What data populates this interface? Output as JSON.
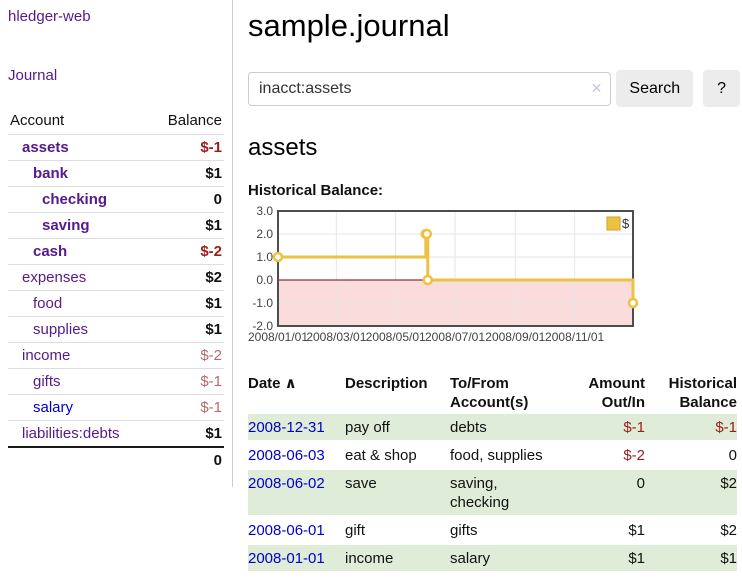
{
  "app": {
    "name": "hledger-web"
  },
  "colors": {
    "link_purple": "#551a8b",
    "link_blue": "#0000cc",
    "negative_strong": "#9b1c1c",
    "negative_soft": "#b36a6c",
    "row_stripe_green": "#deecd8",
    "button_gray": "#ececec"
  },
  "sidebar": {
    "journal_link": "Journal",
    "table": {
      "headers": {
        "account": "Account",
        "balance": "Balance"
      },
      "rows": [
        {
          "name": "assets",
          "balance": "$-1",
          "level": 0,
          "bold": true,
          "balance_bold": true,
          "link_color": "purple"
        },
        {
          "name": "bank",
          "balance": "$1",
          "level": 1,
          "bold": true,
          "balance_bold": true,
          "link_color": "purple"
        },
        {
          "name": "checking",
          "balance": "0",
          "level": 2,
          "bold": true,
          "balance_bold": true,
          "link_color": "purple"
        },
        {
          "name": "saving",
          "balance": "$1",
          "level": 2,
          "bold": true,
          "balance_bold": true,
          "link_color": "purple"
        },
        {
          "name": "cash",
          "balance": "$-2",
          "level": 1,
          "bold": true,
          "balance_bold": true,
          "link_color": "purple"
        },
        {
          "name": "expenses",
          "balance": "$2",
          "level": 0,
          "bold": false,
          "balance_bold": true,
          "link_color": "purple"
        },
        {
          "name": "food",
          "balance": "$1",
          "level": 1,
          "bold": false,
          "balance_bold": true,
          "link_color": "purple"
        },
        {
          "name": "supplies",
          "balance": "$1",
          "level": 1,
          "bold": false,
          "balance_bold": true,
          "link_color": "purple"
        },
        {
          "name": "income",
          "balance": "$-2",
          "level": 0,
          "bold": false,
          "balance_bold": false,
          "link_color": "purple"
        },
        {
          "name": "gifts",
          "balance": "$-1",
          "level": 1,
          "bold": false,
          "balance_bold": false,
          "link_color": "purple"
        },
        {
          "name": "salary",
          "balance": "$-1",
          "level": 1,
          "bold": false,
          "balance_bold": false,
          "link_color": "blue"
        },
        {
          "name": "liabilities:debts",
          "balance": "$1",
          "level": 0,
          "bold": false,
          "balance_bold": true,
          "link_color": "purple"
        }
      ],
      "total": "0"
    }
  },
  "main": {
    "title": "sample.journal",
    "search": {
      "value": "inacct:assets",
      "clear_icon": "✕",
      "button": "Search",
      "help_button": "?"
    },
    "account_heading": "assets"
  },
  "chart_data": {
    "type": "line",
    "step": true,
    "title": "Historical Balance:",
    "xlabel": "",
    "ylabel": "",
    "xlim": [
      "2008-01-01",
      "2008-12-31"
    ],
    "ylim": [
      -2,
      3
    ],
    "x_ticks": [
      "2008/01/01",
      "2008/03/01",
      "2008/05/01",
      "2008/07/01",
      "2008/09/01",
      "2008/11/01"
    ],
    "y_ticks": [
      "3.0",
      "2.0",
      "1.0",
      "0.0",
      "-1.0",
      "-2.0"
    ],
    "grid": true,
    "legend_position": "top-right",
    "grid_color": "#e6e6e6",
    "border_color": "#4d4d4d",
    "zero_line_color": "#800000",
    "negative_region_color": "#fadcdc",
    "series": [
      {
        "name": "$",
        "color": "#edc240",
        "points": [
          [
            "2008-01-01",
            1
          ],
          [
            "2008-06-01",
            2
          ],
          [
            "2008-06-02",
            2
          ],
          [
            "2008-06-03",
            0
          ],
          [
            "2008-12-31",
            -1
          ]
        ]
      }
    ]
  },
  "register": {
    "headers": [
      {
        "label": "Date",
        "sort_indicator": "∧",
        "align": "left",
        "sortable": true
      },
      {
        "label": "Description",
        "align": "left",
        "sortable": false
      },
      {
        "label": "To/From Account(s)",
        "align": "left",
        "sortable": false
      },
      {
        "label": "Amount Out/In",
        "align": "right",
        "sortable": false
      },
      {
        "label": "Historical Balance",
        "align": "right",
        "sortable": false
      }
    ],
    "rows": [
      {
        "date": "2008-12-31",
        "description": "pay off",
        "accounts": "debts",
        "amount": "$-1",
        "balance": "$-1"
      },
      {
        "date": "2008-06-03",
        "description": "eat & shop",
        "accounts": "food, supplies",
        "amount": "$-2",
        "balance": "0"
      },
      {
        "date": "2008-06-02",
        "description": "save",
        "accounts": "saving, checking",
        "amount": "0",
        "balance": "$2"
      },
      {
        "date": "2008-06-01",
        "description": "gift",
        "accounts": "gifts",
        "amount": "$1",
        "balance": "$2"
      },
      {
        "date": "2008-01-01",
        "description": "income",
        "accounts": "salary",
        "amount": "$1",
        "balance": "$1"
      }
    ]
  }
}
